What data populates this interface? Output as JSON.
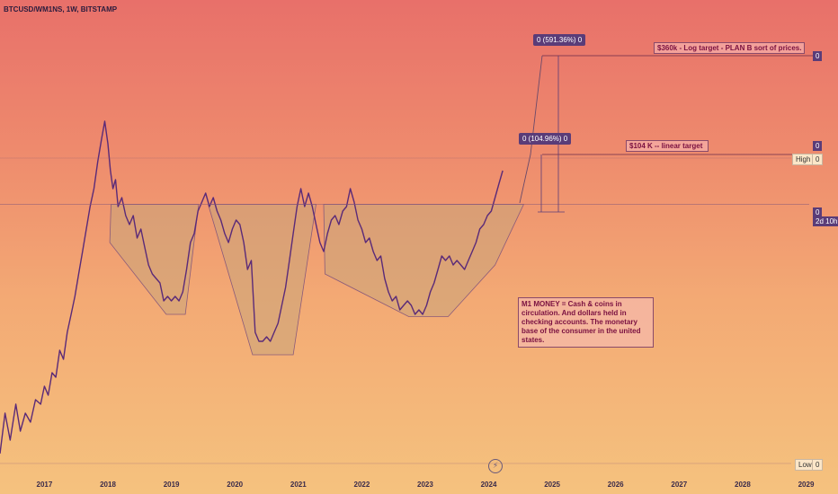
{
  "header": {
    "symbol": "BTCUSD/WM1NS, 1W, BITSTAMP"
  },
  "colors": {
    "price_line": "#5a2a78",
    "pattern_fill": "#c9a47a",
    "pattern_stroke": "#8a5a7a",
    "accent": "#5a3c78"
  },
  "annotations": {
    "m1_note": "M1 MONEY = Cash & coins in circulation. And dollars held in checking accounts. The monetary base of the consumer in the united states.",
    "log_target": "$360k  - Log target - PLAN B sort of prices.",
    "linear_target": "$104 K  -- linear target",
    "log_measure": "0 (591.36%) 0",
    "linear_measure": "0 (104.96%) 0"
  },
  "right_axis": {
    "log_tag": "0",
    "linear_tag": "0",
    "high_label": "High",
    "high_value": "0",
    "current_value": "0",
    "countdown": "2d 10h",
    "low_label": "Low",
    "low_value": "0"
  },
  "chart_data": {
    "type": "line",
    "title": "BTCUSD/WM1NS, 1W, BITSTAMP",
    "xlabel": "",
    "ylabel": "",
    "x_ticks": [
      "2017",
      "2018",
      "2019",
      "2020",
      "2021",
      "2022",
      "2023",
      "2024",
      "2025",
      "2026",
      "2027",
      "2028",
      "2029"
    ],
    "xlim": [
      2016.3,
      2029.05
    ],
    "ylim": [
      0,
      100
    ],
    "grid": false,
    "series": [
      {
        "values": [
          [
            2016.3,
            3
          ],
          [
            2016.38,
            12
          ],
          [
            2016.46,
            6
          ],
          [
            2016.55,
            14
          ],
          [
            2016.62,
            8
          ],
          [
            2016.7,
            12
          ],
          [
            2016.78,
            10
          ],
          [
            2016.86,
            15
          ],
          [
            2016.94,
            14
          ],
          [
            2017.0,
            18
          ],
          [
            2017.06,
            16
          ],
          [
            2017.12,
            21
          ],
          [
            2017.18,
            20
          ],
          [
            2017.24,
            26
          ],
          [
            2017.3,
            24
          ],
          [
            2017.36,
            30
          ],
          [
            2017.42,
            34
          ],
          [
            2017.48,
            38
          ],
          [
            2017.54,
            43
          ],
          [
            2017.6,
            48
          ],
          [
            2017.66,
            53
          ],
          [
            2017.72,
            58
          ],
          [
            2017.78,
            62
          ],
          [
            2017.84,
            68
          ],
          [
            2017.9,
            73
          ],
          [
            2017.95,
            77
          ],
          [
            2018.0,
            72
          ],
          [
            2018.04,
            66
          ],
          [
            2018.08,
            62
          ],
          [
            2018.12,
            64
          ],
          [
            2018.16,
            58
          ],
          [
            2018.22,
            60
          ],
          [
            2018.28,
            56
          ],
          [
            2018.34,
            54
          ],
          [
            2018.4,
            56
          ],
          [
            2018.46,
            51
          ],
          [
            2018.52,
            53
          ],
          [
            2018.58,
            49
          ],
          [
            2018.64,
            45
          ],
          [
            2018.7,
            43
          ],
          [
            2018.76,
            42
          ],
          [
            2018.82,
            41
          ],
          [
            2018.88,
            37
          ],
          [
            2018.94,
            38
          ],
          [
            2019.0,
            37
          ],
          [
            2019.06,
            38
          ],
          [
            2019.12,
            37
          ],
          [
            2019.18,
            39
          ],
          [
            2019.24,
            44
          ],
          [
            2019.3,
            50
          ],
          [
            2019.36,
            52
          ],
          [
            2019.42,
            57
          ],
          [
            2019.48,
            59
          ],
          [
            2019.54,
            61
          ],
          [
            2019.6,
            58
          ],
          [
            2019.66,
            60
          ],
          [
            2019.72,
            57
          ],
          [
            2019.78,
            55
          ],
          [
            2019.84,
            52
          ],
          [
            2019.9,
            50
          ],
          [
            2019.96,
            53
          ],
          [
            2020.02,
            55
          ],
          [
            2020.08,
            54
          ],
          [
            2020.14,
            50
          ],
          [
            2020.2,
            44
          ],
          [
            2020.26,
            46
          ],
          [
            2020.32,
            30
          ],
          [
            2020.38,
            28
          ],
          [
            2020.44,
            28
          ],
          [
            2020.5,
            29
          ],
          [
            2020.56,
            28
          ],
          [
            2020.62,
            30
          ],
          [
            2020.68,
            32
          ],
          [
            2020.74,
            36
          ],
          [
            2020.8,
            40
          ],
          [
            2020.86,
            46
          ],
          [
            2020.92,
            52
          ],
          [
            2020.98,
            58
          ],
          [
            2021.04,
            62
          ],
          [
            2021.1,
            58
          ],
          [
            2021.16,
            61
          ],
          [
            2021.22,
            58
          ],
          [
            2021.28,
            54
          ],
          [
            2021.34,
            50
          ],
          [
            2021.4,
            48
          ],
          [
            2021.46,
            52
          ],
          [
            2021.52,
            55
          ],
          [
            2021.58,
            56
          ],
          [
            2021.64,
            54
          ],
          [
            2021.7,
            57
          ],
          [
            2021.76,
            58
          ],
          [
            2021.82,
            62
          ],
          [
            2021.88,
            59
          ],
          [
            2021.94,
            55
          ],
          [
            2022.0,
            53
          ],
          [
            2022.06,
            50
          ],
          [
            2022.12,
            51
          ],
          [
            2022.18,
            48
          ],
          [
            2022.24,
            46
          ],
          [
            2022.3,
            47
          ],
          [
            2022.36,
            42
          ],
          [
            2022.42,
            39
          ],
          [
            2022.48,
            37
          ],
          [
            2022.54,
            38
          ],
          [
            2022.6,
            35
          ],
          [
            2022.66,
            36
          ],
          [
            2022.72,
            37
          ],
          [
            2022.78,
            36
          ],
          [
            2022.84,
            34
          ],
          [
            2022.9,
            35
          ],
          [
            2022.96,
            34
          ],
          [
            2023.02,
            36
          ],
          [
            2023.08,
            39
          ],
          [
            2023.14,
            41
          ],
          [
            2023.2,
            44
          ],
          [
            2023.26,
            47
          ],
          [
            2023.32,
            46
          ],
          [
            2023.38,
            47
          ],
          [
            2023.44,
            45
          ],
          [
            2023.5,
            46
          ],
          [
            2023.56,
            45
          ],
          [
            2023.62,
            44
          ],
          [
            2023.68,
            46
          ],
          [
            2023.74,
            48
          ],
          [
            2023.8,
            50
          ],
          [
            2023.86,
            53
          ],
          [
            2023.92,
            54
          ],
          [
            2023.98,
            56
          ],
          [
            2024.04,
            57
          ],
          [
            2024.1,
            60
          ],
          [
            2024.16,
            63
          ],
          [
            2024.22,
            66
          ]
        ]
      }
    ]
  }
}
